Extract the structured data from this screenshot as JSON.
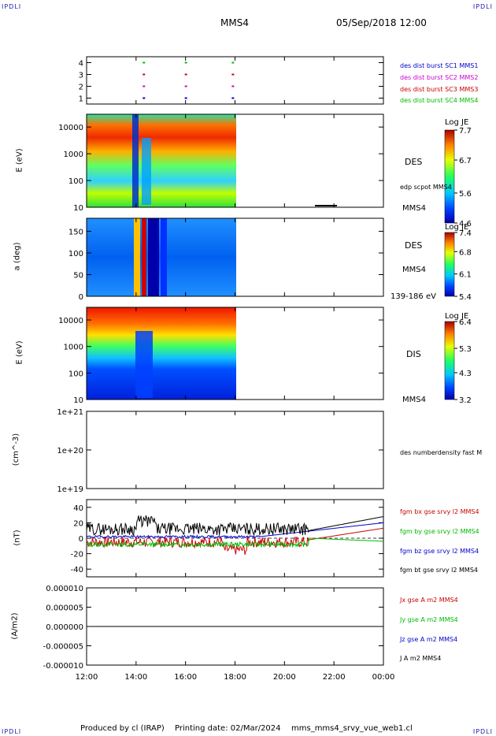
{
  "corners": {
    "tl": "IPDLI",
    "tr": "IPDLI",
    "bl": "IPDLI",
    "br": "IPDLI"
  },
  "header": {
    "spacecraft": "MMS4",
    "datetime": "05/Sep/2018 12:00"
  },
  "footer": {
    "produced": "Produced by cl (IRAP)",
    "printing": "Printing date: 02/Mar/2024",
    "script": "mms_mms4_srvy_vue_web1.cl"
  },
  "time_axis": {
    "ticks": [
      "12:00",
      "14:00",
      "16:00",
      "18:00",
      "20:00",
      "22:00",
      "00:00"
    ],
    "start_hours": 12,
    "end_hours": 24
  },
  "colors": {
    "blue": "#0000cc",
    "magenta": "#cc00cc",
    "red": "#cc0000",
    "green": "#00bb00",
    "black": "#000000",
    "gray": "#444444"
  },
  "chart_data": [
    {
      "type": "scatter",
      "panel": "burst availability",
      "yticks": [
        "1",
        "2",
        "3",
        "4"
      ],
      "ylim": [
        0.5,
        4.5
      ],
      "legend": [
        {
          "label": "des dist burst SC1 MMS1",
          "color": "#0000cc"
        },
        {
          "label": "des dist burst SC2 MMS2",
          "color": "#cc00cc"
        },
        {
          "label": "des dist burst SC3 MMS3",
          "color": "#cc0000"
        },
        {
          "label": "des dist burst SC4 MMS4",
          "color": "#00bb00"
        }
      ],
      "marks": [
        {
          "level": 4,
          "t": 14.3,
          "color": "#00bb00"
        },
        {
          "level": 4,
          "t": 16.0,
          "color": "#00bb00"
        },
        {
          "level": 4,
          "t": 17.9,
          "color": "#00bb00"
        },
        {
          "level": 3,
          "t": 14.3,
          "color": "#cc0000"
        },
        {
          "level": 3,
          "t": 16.0,
          "color": "#cc0000"
        },
        {
          "level": 3,
          "t": 17.9,
          "color": "#cc0000"
        },
        {
          "level": 2,
          "t": 14.3,
          "color": "#cc00cc"
        },
        {
          "level": 2,
          "t": 16.0,
          "color": "#cc00cc"
        },
        {
          "level": 2,
          "t": 17.9,
          "color": "#cc00cc"
        },
        {
          "level": 1,
          "t": 14.3,
          "color": "#0000cc"
        },
        {
          "level": 1,
          "t": 16.0,
          "color": "#0000cc"
        },
        {
          "level": 1,
          "t": 17.9,
          "color": "#0000cc"
        }
      ]
    },
    {
      "type": "heatmap",
      "panel": "electron energy spectrogram",
      "ylabel": "E (eV)",
      "yticks": [
        "10",
        "100",
        "1000",
        "10000"
      ],
      "ylog": true,
      "ylim": [
        10,
        30000
      ],
      "labels": [
        "DES",
        "edp scpot MMS4",
        "MMS4"
      ],
      "colorbar": {
        "title": "Log JE",
        "ticks": [
          "4.6",
          "5.6",
          "6.7",
          "7.7"
        ],
        "range": [
          4.6,
          7.7
        ]
      },
      "data_end_hours": 18.1
    },
    {
      "type": "heatmap",
      "panel": "electron pitch angle",
      "ylabel": "a (deg)",
      "yticks": [
        "0",
        "50",
        "100",
        "150"
      ],
      "ylim": [
        0,
        180
      ],
      "labels": [
        "DES",
        "MMS4",
        "139-186 eV"
      ],
      "colorbar": {
        "title": "Log JE",
        "ticks": [
          "5.4",
          "6.1",
          "6.8",
          "7.4"
        ],
        "range": [
          5.4,
          7.4
        ]
      },
      "data_end_hours": 18.1
    },
    {
      "type": "heatmap",
      "panel": "ion energy spectrogram",
      "ylabel": "E (eV)",
      "yticks": [
        "10",
        "100",
        "1000",
        "10000"
      ],
      "ylog": true,
      "ylim": [
        10,
        30000
      ],
      "labels": [
        "DIS",
        "MMS4"
      ],
      "colorbar": {
        "title": "Log JE",
        "ticks": [
          "3.2",
          "4.3",
          "5.3",
          "6.4"
        ],
        "range": [
          3.2,
          6.4
        ]
      },
      "data_end_hours": 18.1
    },
    {
      "type": "line",
      "panel": "number density",
      "ylabel": "(cm^-3)",
      "yticks": [
        "1e+19",
        "1e+20",
        "1e+21"
      ],
      "ylog": true,
      "ylim": [
        1e+19,
        1e+21
      ],
      "labels": [
        "des numberdensity fast M"
      ]
    },
    {
      "type": "line",
      "panel": "magnetic field",
      "ylabel": "(nT)",
      "yticks": [
        "-40",
        "-20",
        "0",
        "20",
        "40"
      ],
      "ylim": [
        -50,
        50
      ],
      "series": [
        {
          "name": "fgm bx gse srvy l2 MMS4",
          "color": "#cc0000"
        },
        {
          "name": "fgm by gse srvy l2 MMS4",
          "color": "#00bb00"
        },
        {
          "name": "fgm bz gse srvy l2 MMS4",
          "color": "#0000cc"
        },
        {
          "name": "fgm bt gse srvy l2 MMS4",
          "color": "#000000"
        }
      ]
    },
    {
      "type": "line",
      "panel": "current density",
      "ylabel": "(A/m2)",
      "yticks": [
        "-0.000010",
        "-0.000005",
        "0.000000",
        "0.000005",
        "0.000010"
      ],
      "ylim": [
        -1e-05,
        1e-05
      ],
      "series": [
        {
          "name": "Jx gse A m2 MMS4",
          "color": "#cc0000"
        },
        {
          "name": "Jy gse A m2 MMS4",
          "color": "#00bb00"
        },
        {
          "name": "Jz gse A m2 MMS4",
          "color": "#0000cc"
        },
        {
          "name": "J A m2 MMS4",
          "color": "#000000"
        }
      ]
    }
  ]
}
